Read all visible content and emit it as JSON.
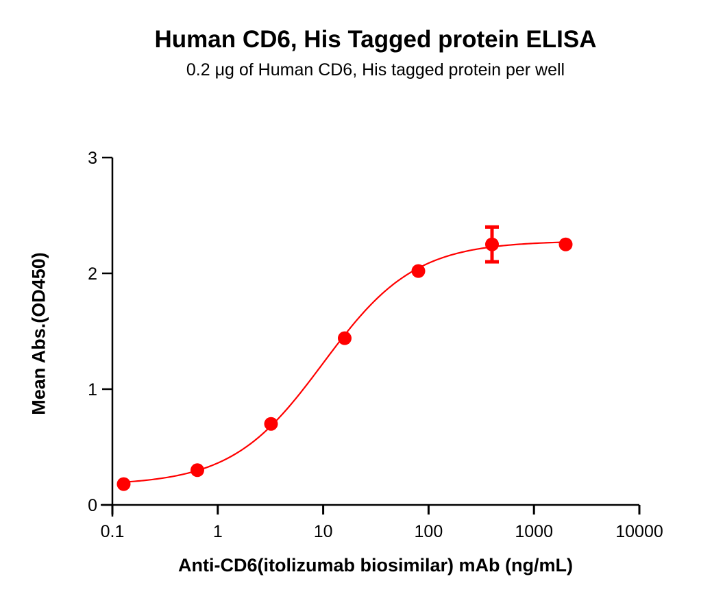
{
  "chart_data": {
    "type": "scatter",
    "title": "Human CD6, His Tagged protein ELISA",
    "subtitle": "0.2 μg of Human CD6, His tagged protein per well",
    "xlabel": "Anti-CD6(itolizumab biosimilar) mAb (ng/mL)",
    "ylabel": "Mean Abs.(OD450)",
    "xscale": "log",
    "xlim": [
      0.1,
      10000
    ],
    "ylim": [
      0,
      3
    ],
    "xticks": [
      "0.1",
      "1",
      "10",
      "100",
      "1000",
      "10000"
    ],
    "yticks": [
      "0",
      "1",
      "2",
      "3"
    ],
    "grid": false,
    "legend": null,
    "series": [
      {
        "name": "Human CD6, His Tagged protein",
        "color": "#ff0000",
        "x": [
          0.128,
          0.64,
          3.2,
          16,
          80,
          400,
          2000
        ],
        "y": [
          0.18,
          0.3,
          0.7,
          1.44,
          2.02,
          2.25,
          2.25
        ],
        "error": [
          0,
          0,
          0,
          0,
          0,
          0.15,
          0
        ]
      }
    ],
    "fit": {
      "model": "4PL",
      "bottom": 0.17,
      "top": 2.28,
      "ec50": 10,
      "hill": 1.0,
      "color": "#ff0000"
    }
  }
}
